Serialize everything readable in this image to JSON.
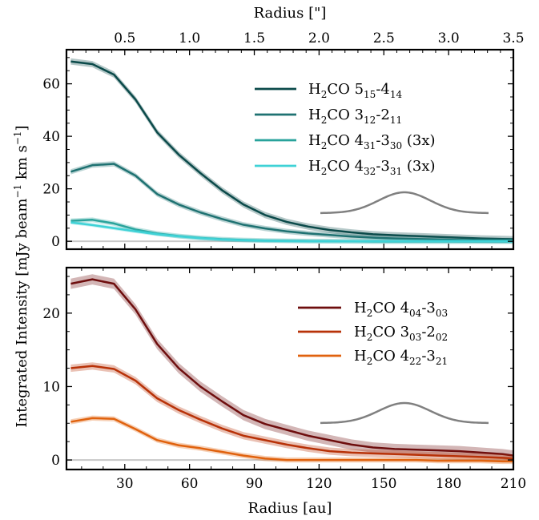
{
  "chart_data": [
    {
      "type": "line",
      "panel": "top",
      "x_unit": "au",
      "xlim": [
        3,
        210
      ],
      "ylim": [
        -3,
        73
      ],
      "y_ticks": [
        0,
        20,
        40,
        60
      ],
      "x_ticks": [
        30,
        60,
        90,
        120,
        150,
        180,
        210
      ],
      "top_axis": {
        "label": "Radius [\"]",
        "tick_values": [
          0.5,
          1.0,
          1.5,
          2.0,
          2.5,
          3.0,
          3.5
        ],
        "tick_labels": [
          "0.5",
          "1.0",
          "1.5",
          "2.0",
          "2.5",
          "3.0",
          "3.5"
        ],
        "au_per_arcsec": 60
      },
      "legend_position": "top-right",
      "x": [
        5,
        15,
        25,
        35,
        45,
        55,
        65,
        75,
        85,
        95,
        105,
        115,
        125,
        135,
        145,
        155,
        165,
        175,
        185,
        195,
        205,
        210
      ],
      "series": [
        {
          "name_main": "H",
          "name_sub1": "2",
          "name_mid": "CO 5",
          "name_sub2": "15",
          "name_dash": "-4",
          "name_sub3": "14",
          "name_suffix": "",
          "color": "#0b4a4a",
          "values": [
            68.5,
            67.5,
            63.5,
            54,
            41.5,
            33,
            26,
            19.5,
            14,
            10,
            7.4,
            5.6,
            4.3,
            3.4,
            2.7,
            2.3,
            2.0,
            1.7,
            1.4,
            1.1,
            0.9,
            0.8
          ],
          "band": 1.2
        },
        {
          "name_main": "H",
          "name_sub1": "2",
          "name_mid": "CO 3",
          "name_sub2": "12",
          "name_dash": "-2",
          "name_sub3": "11",
          "name_suffix": "",
          "color": "#1f7272",
          "values": [
            26.5,
            29,
            29.5,
            25,
            18,
            14,
            11,
            8.5,
            6.3,
            4.9,
            3.8,
            3.0,
            2.4,
            1.8,
            1.4,
            1.1,
            0.9,
            0.7,
            0.5,
            0.4,
            0.3,
            0.3
          ],
          "band": 1.0
        },
        {
          "name_main": "H",
          "name_sub1": "2",
          "name_mid": "CO 4",
          "name_sub2": "31",
          "name_dash": "-3",
          "name_sub3": "30",
          "name_suffix": " (3x)",
          "color": "#29a39b",
          "values": [
            7.8,
            8.2,
            6.8,
            4.5,
            3.0,
            2.0,
            1.3,
            0.8,
            0.5,
            0.3,
            0.2,
            0.1,
            0.05,
            0.0,
            -0.1,
            -0.1,
            -0.1,
            -0.1,
            -0.1,
            -0.1,
            -0.1,
            -0.1
          ],
          "band": 0.9
        },
        {
          "name_main": "H",
          "name_sub1": "2",
          "name_mid": "CO 4",
          "name_sub2": "32",
          "name_dash": "-3",
          "name_sub3": "31",
          "name_suffix": " (3x)",
          "color": "#3fd2d6",
          "values": [
            7.2,
            6.2,
            5.0,
            3.8,
            2.7,
            1.9,
            1.2,
            0.7,
            0.4,
            0.2,
            0.1,
            0.0,
            0.0,
            0.0,
            0.0,
            0.0,
            0.0,
            0.0,
            0.0,
            0.0,
            0.0,
            0.0
          ],
          "band": 0.7
        }
      ]
    },
    {
      "type": "line",
      "panel": "bottom",
      "x_unit": "au",
      "xlim": [
        3,
        210
      ],
      "ylim": [
        -1.3,
        26.2
      ],
      "y_ticks": [
        0,
        10,
        20
      ],
      "x_ticks": [
        30,
        60,
        90,
        120,
        150,
        180,
        210
      ],
      "xlabel": "Radius [au]",
      "legend_position": "top-right",
      "x": [
        5,
        15,
        25,
        35,
        45,
        55,
        65,
        75,
        85,
        95,
        105,
        115,
        125,
        135,
        145,
        155,
        165,
        175,
        185,
        195,
        205,
        210
      ],
      "series": [
        {
          "name_main": "H",
          "name_sub1": "2",
          "name_mid": "CO 4",
          "name_sub2": "04",
          "name_dash": "-3",
          "name_sub3": "03",
          "name_suffix": "",
          "color": "#6e0e0e",
          "values": [
            24,
            24.6,
            24,
            20.5,
            15.8,
            12.5,
            10,
            8,
            6.1,
            4.9,
            4.1,
            3.3,
            2.7,
            2.1,
            1.7,
            1.5,
            1.4,
            1.3,
            1.2,
            1.0,
            0.8,
            0.6
          ],
          "band": 0.7
        },
        {
          "name_main": "H",
          "name_sub1": "2",
          "name_mid": "CO 3",
          "name_sub2": "03",
          "name_dash": "-2",
          "name_sub3": "02",
          "name_suffix": "",
          "color": "#b83208",
          "values": [
            12.5,
            12.8,
            12.4,
            10.8,
            8.4,
            6.8,
            5.5,
            4.3,
            3.3,
            2.7,
            2.1,
            1.6,
            1.2,
            1.0,
            0.9,
            0.8,
            0.7,
            0.6,
            0.5,
            0.4,
            0.3,
            0.2
          ],
          "band": 0.5
        },
        {
          "name_main": "H",
          "name_sub1": "2",
          "name_mid": "CO 4",
          "name_sub2": "22",
          "name_dash": "-3",
          "name_sub3": "21",
          "name_suffix": "",
          "color": "#e0620e",
          "values": [
            5.2,
            5.7,
            5.6,
            4.2,
            2.7,
            2.0,
            1.6,
            1.1,
            0.6,
            0.2,
            0.0,
            0.0,
            0.0,
            0.0,
            0.0,
            0.0,
            0.0,
            -0.1,
            -0.1,
            -0.1,
            -0.2,
            -0.2
          ],
          "band": 0.35
        }
      ]
    }
  ],
  "shared_ylabel": {
    "prefix": "Integrated Intensity [mJy beam",
    "exp1": "−1",
    "mid": " km s",
    "exp2": "−1",
    "suffix": "]"
  },
  "colors": {
    "beam": "#808080",
    "zero_line": "#c8c8c8"
  }
}
